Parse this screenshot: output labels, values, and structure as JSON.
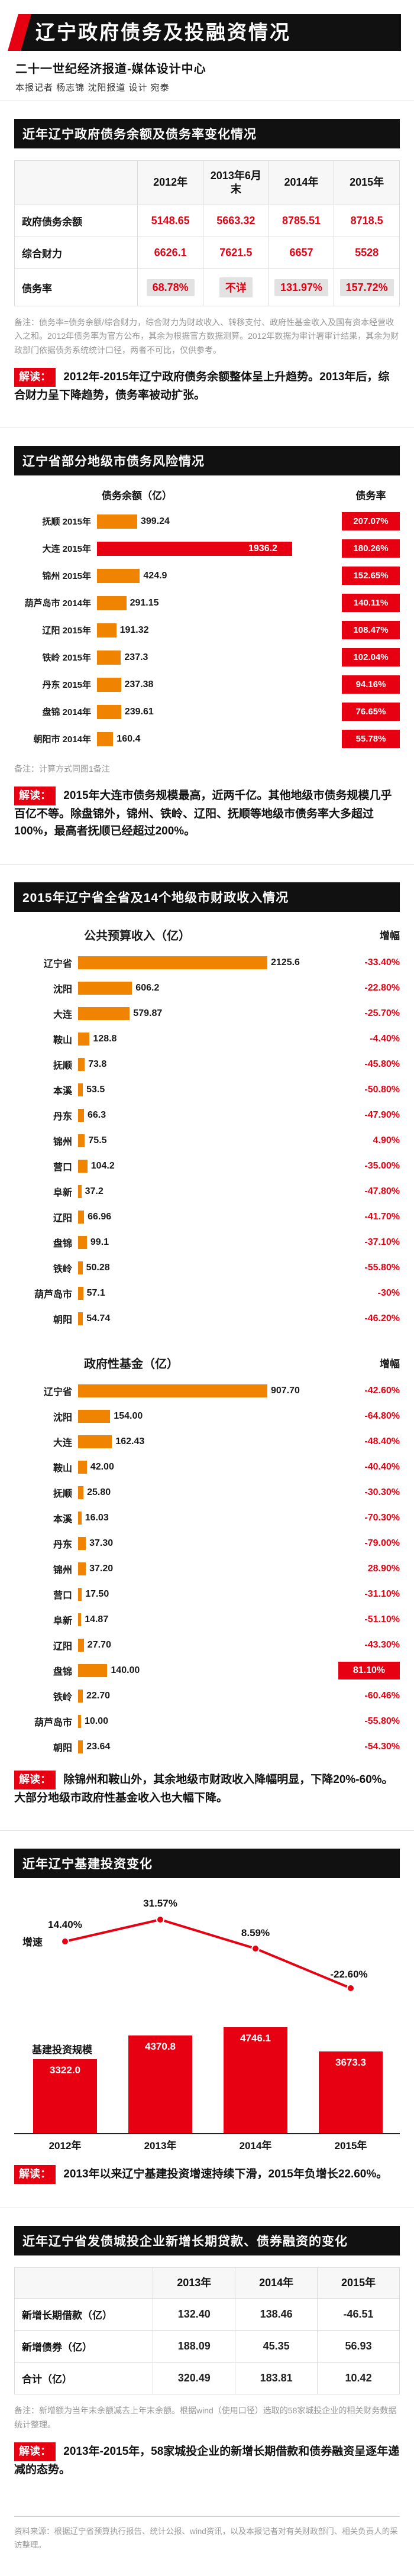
{
  "masthead": {
    "title": "辽宁政府债务及投融资情况",
    "agency": "二十一世纪经济报道-媒体设计中心",
    "byline": "本报记者 杨志锦 沈阳报道 设计 宛泰"
  },
  "colors": {
    "accent_red": "#e60012",
    "bar_orange": "#f08300",
    "header_black": "#111111"
  },
  "debt_overview": {
    "header": "近年辽宁政府债务余额及债务率变化情况",
    "columns": [
      "2012年",
      "2013年6月末",
      "2014年",
      "2015年"
    ],
    "rows": [
      {
        "label": "政府债务余额",
        "v0": "5148.65",
        "v1": "5663.32",
        "v2": "8785.51",
        "v3": "8718.5"
      },
      {
        "label": "综合财力",
        "v0": "6626.1",
        "v1": "7621.5",
        "v2": "6657",
        "v3": "5528"
      },
      {
        "label": "债务率",
        "v0": "68.78%",
        "v1": "不详",
        "v2": "131.97%",
        "v3": "157.72%",
        "shade": true
      }
    ],
    "note": "备注：债务率=债务余额/综合财力，综合财力为财政收入、转移支付、政府性基金收入及国有资本经营收入之和。2012年债务率为官方公布，其余为根据官方数据测算。2012年数据为审计署审计结果，其余为财政部门依据债务系统统计口径，两者不可比，仅供参考。",
    "reading_label": "解读：",
    "reading": "2012年-2015年辽宁政府债务余额整体呈上升趋势。2013年后，综合财力呈下降趋势，债务率被动扩张。"
  },
  "city_debt": {
    "header": "辽宁省部分地级市债务风险情况",
    "col_balance": "债务余额（亿）",
    "col_rate": "债务率",
    "rows": [
      {
        "label": "抚顺 2015年",
        "value": "399.24",
        "rate": "207.07%"
      },
      {
        "label": "大连 2015年",
        "value": "1936.2",
        "rate": "180.26%",
        "accent": true
      },
      {
        "label": "锦州 2015年",
        "value": "424.9",
        "rate": "152.65%"
      },
      {
        "label": "葫芦岛市 2014年",
        "value": "291.15",
        "rate": "140.11%"
      },
      {
        "label": "辽阳 2015年",
        "value": "191.32",
        "rate": "108.47%"
      },
      {
        "label": "铁岭 2015年",
        "value": "237.3",
        "rate": "102.04%"
      },
      {
        "label": "丹东 2015年",
        "value": "237.38",
        "rate": "94.16%"
      },
      {
        "label": "盘锦 2014年",
        "value": "239.61",
        "rate": "76.65%"
      },
      {
        "label": "朝阳市 2014年",
        "value": "160.4",
        "rate": "55.78%"
      }
    ],
    "note": "备注：计算方式同图1备注",
    "reading_label": "解读：",
    "reading": "2015年大连市债务规模最高，近两千亿。其他地级市债务规模几乎百亿不等。除盘锦外，锦州、铁岭、辽阳、抚顺等地级市债务率大多超过100%，最高者抚顺已经超过200%。"
  },
  "fiscal_revenue": {
    "header": "2015年辽宁省全省及14个地级市财政收入情况",
    "budget": {
      "title": "公共预算收入（亿）",
      "inc_label": "增幅",
      "rows": [
        {
          "label": "辽宁省",
          "value": "2125.6",
          "pct": "-33.40%"
        },
        {
          "label": "沈阳",
          "value": "606.2",
          "pct": "-22.80%"
        },
        {
          "label": "大连",
          "value": "579.87",
          "pct": "-25.70%"
        },
        {
          "label": "鞍山",
          "value": "128.8",
          "pct": "-4.40%"
        },
        {
          "label": "抚顺",
          "value": "73.8",
          "pct": "-45.80%"
        },
        {
          "label": "本溪",
          "value": "53.5",
          "pct": "-50.80%"
        },
        {
          "label": "丹东",
          "value": "66.3",
          "pct": "-47.90%"
        },
        {
          "label": "锦州",
          "value": "75.5",
          "pct": "4.90%"
        },
        {
          "label": "营口",
          "value": "104.2",
          "pct": "-35.00%"
        },
        {
          "label": "阜新",
          "value": "37.2",
          "pct": "-47.80%"
        },
        {
          "label": "辽阳",
          "value": "66.96",
          "pct": "-41.70%"
        },
        {
          "label": "盘锦",
          "value": "99.1",
          "pct": "-37.10%"
        },
        {
          "label": "铁岭",
          "value": "50.28",
          "pct": "-55.80%"
        },
        {
          "label": "葫芦岛市",
          "value": "57.1",
          "pct": "-30%"
        },
        {
          "label": "朝阳",
          "value": "54.74",
          "pct": "-46.20%"
        }
      ]
    },
    "fund": {
      "title": "政府性基金（亿）",
      "inc_label": "增幅",
      "rows": [
        {
          "label": "辽宁省",
          "value": "907.70",
          "pct": "-42.60%"
        },
        {
          "label": "沈阳",
          "value": "154.00",
          "pct": "-64.80%"
        },
        {
          "label": "大连",
          "value": "162.43",
          "pct": "-48.40%"
        },
        {
          "label": "鞍山",
          "value": "42.00",
          "pct": "-40.40%"
        },
        {
          "label": "抚顺",
          "value": "25.80",
          "pct": "-30.30%"
        },
        {
          "label": "本溪",
          "value": "16.03",
          "pct": "-70.30%"
        },
        {
          "label": "丹东",
          "value": "37.30",
          "pct": "-79.00%"
        },
        {
          "label": "锦州",
          "value": "37.20",
          "pct": "28.90%"
        },
        {
          "label": "营口",
          "value": "17.50",
          "pct": "-31.10%"
        },
        {
          "label": "阜新",
          "value": "14.87",
          "pct": "-51.10%"
        },
        {
          "label": "辽阳",
          "value": "27.70",
          "pct": "-43.30%"
        },
        {
          "label": "盘锦",
          "value": "140.00",
          "pct": "81.10%",
          "accent_pct": true
        },
        {
          "label": "铁岭",
          "value": "22.70",
          "pct": "-60.46%"
        },
        {
          "label": "葫芦岛市",
          "value": "10.00",
          "pct": "-55.80%"
        },
        {
          "label": "朝阳",
          "value": "23.64",
          "pct": "-54.30%"
        }
      ]
    },
    "reading_label": "解读：",
    "reading": "除锦州和鞍山外，其余地级市财政收入降幅明显，下降20%-60%。大部分地级市政府性基金收入也大幅下降。"
  },
  "infra": {
    "header": "近年辽宁基建投资变化",
    "growth_label": "增速",
    "scale_label": "基建投资规模",
    "years": [
      "2012年",
      "2013年",
      "2014年",
      "2015年"
    ],
    "growth": [
      "14.40%",
      "31.57%",
      "8.59%",
      "-22.60%"
    ],
    "scale": [
      "3322.0",
      "4370.8",
      "4746.1",
      "3673.3"
    ],
    "reading_label": "解读：",
    "reading": "2013年以来辽宁基建投资增速持续下滑，2015年负增长22.60%。"
  },
  "financing": {
    "header": "近年辽宁省发债城投企业新增长期贷款、债券融资的变化",
    "columns": [
      "2013年",
      "2014年",
      "2015年"
    ],
    "rows": [
      {
        "label": "新增长期借款（亿）",
        "v0": "132.40",
        "v1": "138.46",
        "v2": "-46.51"
      },
      {
        "label": "新增债券（亿）",
        "v0": "188.09",
        "v1": "45.35",
        "v2": "56.93"
      },
      {
        "label": "合计（亿）",
        "v0": "320.49",
        "v1": "183.81",
        "v2": "10.42"
      }
    ],
    "note": "备注：新增额为当年末余额减去上年末余额。根据wind（使用口径）选取的58家城投企业的相关财务数据统计整理。",
    "reading_label": "解读：",
    "reading": "2013年-2015年，58家城投企业的新增长期借款和债券融资呈逐年递减的态势。"
  },
  "footer": {
    "source": "资料来源：根据辽宁省预算执行报告、统计公报、wind资讯，以及本报记者对有关财政部门、相关负责人的采访整理。"
  },
  "chart_data": [
    {
      "type": "table",
      "title": "近年辽宁政府债务余额及债务率变化情况",
      "columns": [
        "",
        "2012年",
        "2013年6月末",
        "2014年",
        "2015年"
      ],
      "rows": [
        [
          "政府债务余额",
          5148.65,
          5663.32,
          8785.51,
          8718.5
        ],
        [
          "综合财力",
          6626.1,
          7621.5,
          6657,
          5528
        ],
        [
          "债务率",
          "68.78%",
          "不详",
          "131.97%",
          "157.72%"
        ]
      ]
    },
    {
      "type": "bar",
      "title": "辽宁省部分地级市债务风险情况",
      "orientation": "horizontal",
      "categories": [
        "抚顺 2015年",
        "大连 2015年",
        "锦州 2015年",
        "葫芦岛市 2014年",
        "辽阳 2015年",
        "铁岭 2015年",
        "丹东 2015年",
        "盘锦 2014年",
        "朝阳市 2014年"
      ],
      "series": [
        {
          "name": "债务余额（亿）",
          "values": [
            399.24,
            1936.2,
            424.9,
            291.15,
            191.32,
            237.3,
            237.38,
            239.61,
            160.4
          ]
        },
        {
          "name": "债务率",
          "values": [
            "207.07%",
            "180.26%",
            "152.65%",
            "140.11%",
            "108.47%",
            "102.04%",
            "94.16%",
            "76.65%",
            "55.78%"
          ]
        }
      ],
      "legend_position": "top",
      "highlight_category": "大连 2015年"
    },
    {
      "type": "bar",
      "title": "公共预算收入（亿）",
      "orientation": "horizontal",
      "categories": [
        "辽宁省",
        "沈阳",
        "大连",
        "鞍山",
        "抚顺",
        "本溪",
        "丹东",
        "锦州",
        "营口",
        "阜新",
        "辽阳",
        "盘锦",
        "铁岭",
        "葫芦岛市",
        "朝阳"
      ],
      "series": [
        {
          "name": "公共预算收入（亿）",
          "values": [
            2125.6,
            606.2,
            579.87,
            128.8,
            73.8,
            53.5,
            66.3,
            75.5,
            104.2,
            37.2,
            66.96,
            99.1,
            50.28,
            57.1,
            54.74
          ]
        },
        {
          "name": "增幅",
          "values": [
            "-33.40%",
            "-22.80%",
            "-25.70%",
            "-4.40%",
            "-45.80%",
            "-50.80%",
            "-47.90%",
            "4.90%",
            "-35.00%",
            "-47.80%",
            "-41.70%",
            "-37.10%",
            "-55.80%",
            "-30%",
            "-46.20%"
          ]
        }
      ]
    },
    {
      "type": "bar",
      "title": "政府性基金（亿）",
      "orientation": "horizontal",
      "categories": [
        "辽宁省",
        "沈阳",
        "大连",
        "鞍山",
        "抚顺",
        "本溪",
        "丹东",
        "锦州",
        "营口",
        "阜新",
        "辽阳",
        "盘锦",
        "铁岭",
        "葫芦岛市",
        "朝阳"
      ],
      "series": [
        {
          "name": "政府性基金（亿）",
          "values": [
            907.7,
            154.0,
            162.43,
            42.0,
            25.8,
            16.03,
            37.3,
            37.2,
            17.5,
            14.87,
            27.7,
            140.0,
            22.7,
            10.0,
            23.64
          ]
        },
        {
          "name": "增幅",
          "values": [
            "-42.60%",
            "-64.80%",
            "-48.40%",
            "-40.40%",
            "-30.30%",
            "-70.30%",
            "-79.00%",
            "28.90%",
            "-31.10%",
            "-51.10%",
            "-43.30%",
            "81.10%",
            "-60.46%",
            "-55.80%",
            "-54.30%"
          ]
        }
      ],
      "highlight_category": "盘锦"
    },
    {
      "type": "bar",
      "title": "近年辽宁基建投资变化",
      "categories": [
        "2012年",
        "2013年",
        "2014年",
        "2015年"
      ],
      "series": [
        {
          "name": "基建投资规模",
          "type": "bar",
          "values": [
            3322.0,
            4370.8,
            4746.1,
            3673.3
          ]
        },
        {
          "name": "增速",
          "type": "line",
          "values": [
            14.4,
            31.57,
            8.59,
            -22.6
          ],
          "unit": "%"
        }
      ]
    },
    {
      "type": "table",
      "title": "近年辽宁省发债城投企业新增长期贷款、债券融资的变化",
      "columns": [
        "",
        "2013年",
        "2014年",
        "2015年"
      ],
      "rows": [
        [
          "新增长期借款（亿）",
          132.4,
          138.46,
          -46.51
        ],
        [
          "新增债券（亿）",
          188.09,
          45.35,
          56.93
        ],
        [
          "合计（亿）",
          320.49,
          183.81,
          10.42
        ]
      ]
    }
  ]
}
